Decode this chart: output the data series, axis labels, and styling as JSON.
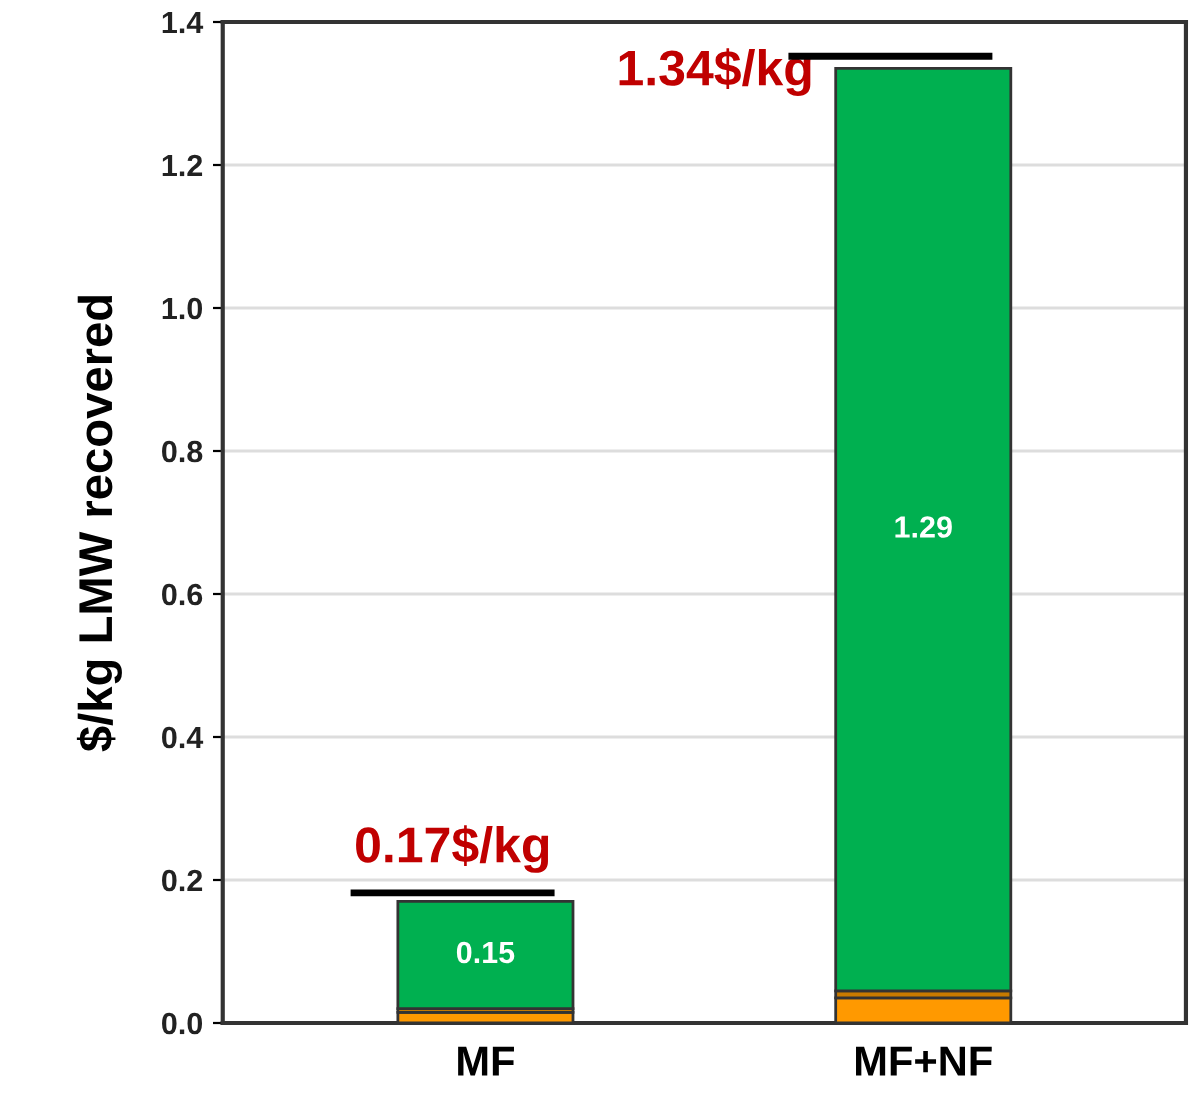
{
  "chart_data": {
    "type": "bar",
    "stacked": true,
    "ylabel": "$/kg LMW recovered",
    "categories": [
      "MF",
      "MF+NF"
    ],
    "series": [
      {
        "color": "#ff9900",
        "values": [
          0.015,
          0.035
        ]
      },
      {
        "color": "#c87a00",
        "values": [
          0.005,
          0.01
        ]
      },
      {
        "color": "#00b050",
        "values": [
          0.15,
          1.29
        ],
        "value_labels": [
          "0.15",
          "1.29"
        ]
      }
    ],
    "annotations": [
      {
        "text": "0.17$/kg",
        "x": "MF",
        "y": 0.17
      },
      {
        "text": "1.34$/kg",
        "x": "MF+NF",
        "y": 1.34
      }
    ],
    "ylim": [
      0,
      1.4
    ],
    "yticks": [
      {
        "value": 0,
        "label": "0.0"
      },
      0.2,
      0.4,
      0.6,
      0.8,
      {
        "value": 1,
        "label": "1.0"
      },
      1.2,
      1.4
    ],
    "grid": "y",
    "legend": false
  }
}
